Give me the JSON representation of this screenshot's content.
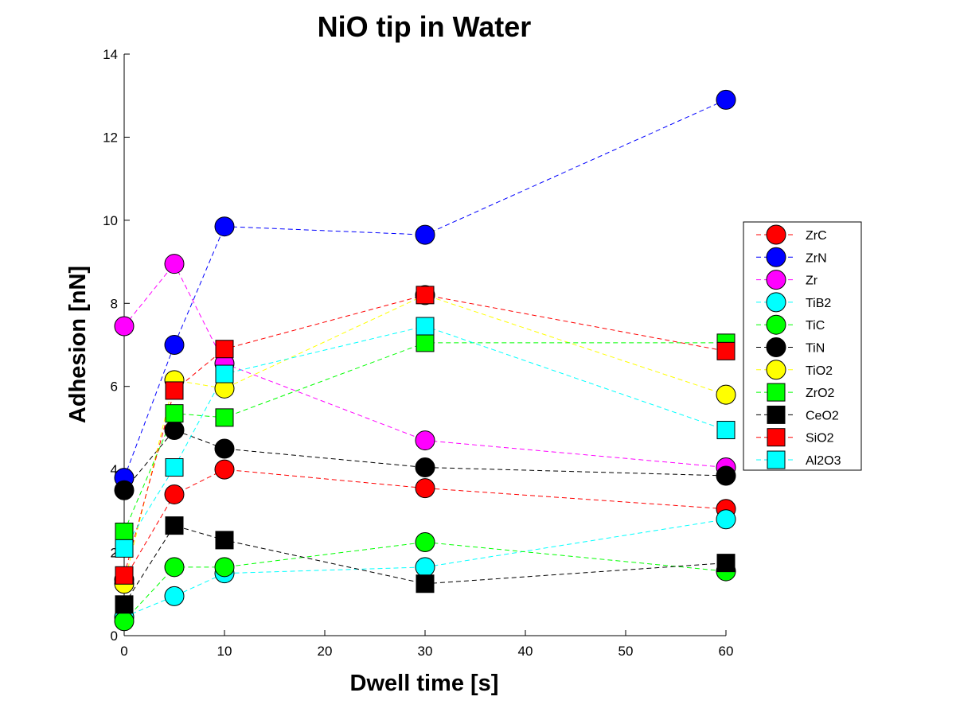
{
  "chart_data": {
    "type": "line",
    "title": "NiO tip in Water",
    "xlabel": "Dwell time [s]",
    "ylabel": "Adhesion [nN]",
    "xlim": [
      0,
      60
    ],
    "ylim": [
      0,
      14
    ],
    "xticks": [
      0,
      10,
      20,
      30,
      40,
      50,
      60
    ],
    "yticks": [
      0,
      2,
      4,
      6,
      8,
      10,
      12,
      14
    ],
    "grid": false,
    "legend_position": "right",
    "x": [
      0,
      5,
      10,
      30,
      60
    ],
    "series": [
      {
        "name": "ZrC",
        "marker": "circle",
        "color": "#ff0000",
        "values": [
          1.35,
          3.4,
          4.0,
          3.55,
          3.05
        ]
      },
      {
        "name": "ZrN",
        "marker": "circle",
        "color": "#0000ff",
        "values": [
          3.8,
          7.0,
          9.85,
          9.65,
          12.9
        ]
      },
      {
        "name": "Zr",
        "marker": "circle",
        "color": "#ff00ff",
        "values": [
          7.45,
          8.95,
          6.55,
          4.7,
          4.05
        ]
      },
      {
        "name": "TiB2",
        "marker": "circle",
        "color": "#00ffff",
        "values": [
          0.45,
          0.95,
          1.5,
          1.65,
          2.8
        ]
      },
      {
        "name": "TiC",
        "marker": "circle",
        "color": "#00ff00",
        "values": [
          0.35,
          1.65,
          1.65,
          2.25,
          1.55
        ]
      },
      {
        "name": "TiN",
        "marker": "circle",
        "color": "#000000",
        "values": [
          3.5,
          4.95,
          4.5,
          4.05,
          3.85
        ]
      },
      {
        "name": "TiO2",
        "marker": "circle",
        "color": "#ffff00",
        "values": [
          1.25,
          6.15,
          5.95,
          8.2,
          5.8
        ]
      },
      {
        "name": "ZrO2",
        "marker": "square",
        "color": "#00ff00",
        "values": [
          2.5,
          5.35,
          5.25,
          7.05,
          7.05
        ]
      },
      {
        "name": "CeO2",
        "marker": "square",
        "color": "#000000",
        "values": [
          0.75,
          2.65,
          2.3,
          1.25,
          1.75
        ]
      },
      {
        "name": "SiO2",
        "marker": "square",
        "color": "#ff0000",
        "values": [
          1.45,
          5.9,
          6.9,
          8.2,
          6.85
        ]
      },
      {
        "name": "Al2O3",
        "marker": "square",
        "color": "#00ffff",
        "values": [
          2.1,
          4.05,
          6.3,
          7.45,
          4.95
        ]
      }
    ]
  }
}
